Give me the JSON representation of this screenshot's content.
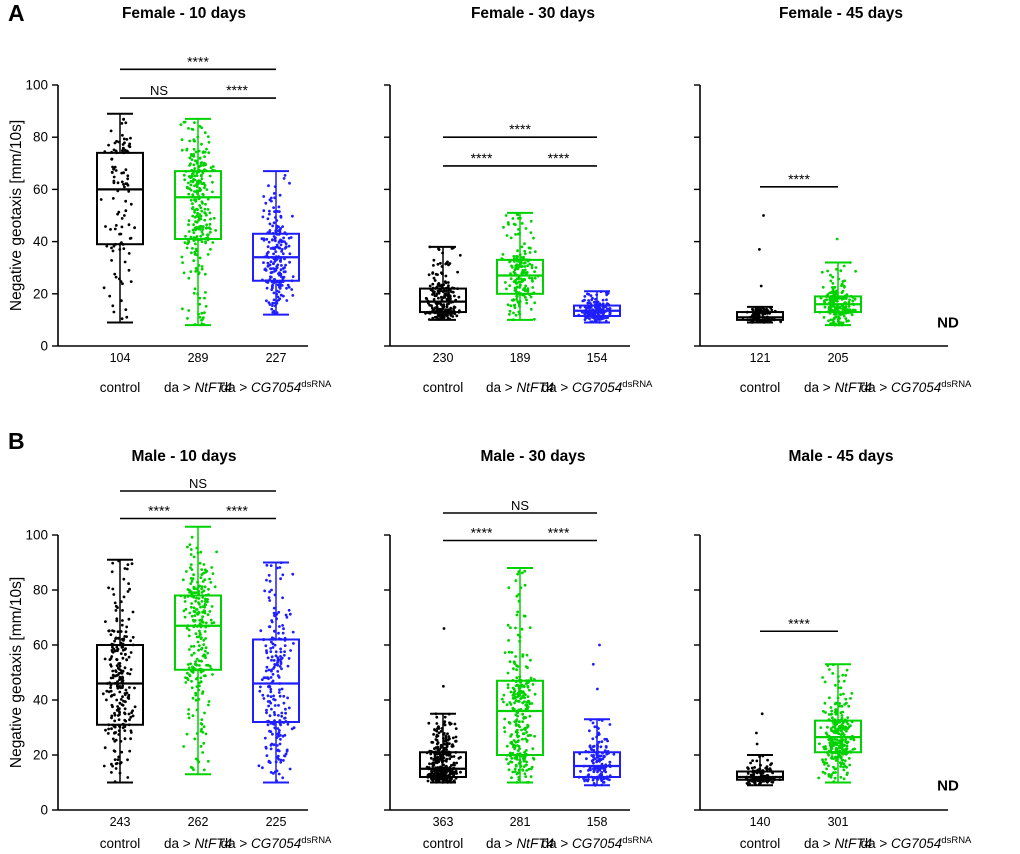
{
  "figure": {
    "letters": [
      "A",
      "B"
    ],
    "y_axis_label": "Negative geotaxis [mm/10s]",
    "nd_label": "ND",
    "colors": {
      "control": "#000000",
      "ntft4": "#00d200",
      "cg7054_dsrna": "#1e1eff"
    }
  },
  "chart_data": [
    {
      "type": "box",
      "title": "Female - 10 days",
      "row": 0,
      "col": 0,
      "ylabel": "Negative geotaxis [mm/10s]",
      "ylim": [
        0,
        100
      ],
      "yticks": [
        0,
        20,
        40,
        60,
        80,
        100
      ],
      "groups": [
        {
          "label_parts": {
            "text": "control"
          },
          "n": 104,
          "color": "#000000",
          "stats": {
            "lo": 9,
            "q1": 39,
            "med": 60,
            "q3": 74,
            "hi": 89
          },
          "outliers": []
        },
        {
          "label_parts": {
            "prefix": "da > ",
            "italic": "NtFT4"
          },
          "n": 289,
          "color": "#00d200",
          "stats": {
            "lo": 8,
            "q1": 41,
            "med": 57,
            "q3": 67,
            "hi": 87
          },
          "outliers": []
        },
        {
          "label_parts": {
            "prefix": "da > ",
            "italic": "CG7054",
            "sup": "dsRNA"
          },
          "n": 227,
          "color": "#1e1eff",
          "stats": {
            "lo": 12,
            "q1": 25,
            "med": 34,
            "q3": 43,
            "hi": 67
          },
          "outliers": []
        }
      ],
      "significance": [
        {
          "from": 0,
          "to": 2,
          "label": "****",
          "y": 106
        },
        {
          "from": 0,
          "to": 1,
          "label": "NS",
          "y": 95
        },
        {
          "from": 1,
          "to": 2,
          "label": "****",
          "y": 95
        }
      ]
    },
    {
      "type": "box",
      "title": "Female - 30 days",
      "row": 0,
      "col": 1,
      "ylabel": "Negative geotaxis [mm/10s]",
      "ylim": [
        0,
        100
      ],
      "yticks": [
        0,
        20,
        40,
        60,
        80,
        100
      ],
      "groups": [
        {
          "label_parts": {
            "text": "control"
          },
          "n": 230,
          "color": "#000000",
          "stats": {
            "lo": 10,
            "q1": 13,
            "med": 17,
            "q3": 22,
            "hi": 38
          },
          "outliers": []
        },
        {
          "label_parts": {
            "prefix": "da > ",
            "italic": "NtFT4"
          },
          "n": 189,
          "color": "#00d200",
          "stats": {
            "lo": 10,
            "q1": 20,
            "med": 27,
            "q3": 33,
            "hi": 51
          },
          "outliers": []
        },
        {
          "label_parts": {
            "prefix": "da > ",
            "italic": "CG7054",
            "sup": "dsRNA"
          },
          "n": 154,
          "color": "#1e1eff",
          "stats": {
            "lo": 9,
            "q1": 11.5,
            "med": 13.5,
            "q3": 15.5,
            "hi": 21
          },
          "outliers": []
        }
      ],
      "significance": [
        {
          "from": 0,
          "to": 2,
          "label": "****",
          "y": 80
        },
        {
          "from": 0,
          "to": 1,
          "label": "****",
          "y": 69
        },
        {
          "from": 1,
          "to": 2,
          "label": "****",
          "y": 69
        }
      ]
    },
    {
      "type": "box",
      "title": "Female - 45 days",
      "row": 0,
      "col": 2,
      "ylabel": "Negative geotaxis [mm/10s]",
      "ylim": [
        0,
        100
      ],
      "yticks": [
        0,
        20,
        40,
        60,
        80,
        100
      ],
      "groups": [
        {
          "label_parts": {
            "text": "control"
          },
          "n": 121,
          "color": "#000000",
          "stats": {
            "lo": 9,
            "q1": 10,
            "med": 11,
            "q3": 13,
            "hi": 15
          },
          "outliers": [
            23,
            37,
            50
          ]
        },
        {
          "label_parts": {
            "prefix": "da > ",
            "italic": "NtFT4"
          },
          "n": 205,
          "color": "#00d200",
          "stats": {
            "lo": 8,
            "q1": 13,
            "med": 16,
            "q3": 19,
            "hi": 32
          },
          "outliers": [
            41
          ]
        },
        {
          "label_parts": {
            "prefix": "da > ",
            "italic": "CG7054",
            "sup": "dsRNA"
          },
          "nd": true
        }
      ],
      "significance": [
        {
          "from": 0,
          "to": 1,
          "label": "****",
          "y": 61
        }
      ]
    },
    {
      "type": "box",
      "title": "Male - 10 days",
      "row": 1,
      "col": 0,
      "ylabel": "Negative geotaxis [mm/10s]",
      "ylim": [
        0,
        100
      ],
      "yticks": [
        0,
        20,
        40,
        60,
        80,
        100
      ],
      "groups": [
        {
          "label_parts": {
            "text": "control"
          },
          "n": 243,
          "color": "#000000",
          "stats": {
            "lo": 10,
            "q1": 31,
            "med": 46,
            "q3": 60,
            "hi": 91
          },
          "outliers": []
        },
        {
          "label_parts": {
            "prefix": "da > ",
            "italic": "NtFT4"
          },
          "n": 262,
          "color": "#00d200",
          "stats": {
            "lo": 13,
            "q1": 51,
            "med": 67,
            "q3": 78,
            "hi": 103
          },
          "outliers": []
        },
        {
          "label_parts": {
            "prefix": "da > ",
            "italic": "CG7054",
            "sup": "dsRNA"
          },
          "n": 225,
          "color": "#1e1eff",
          "stats": {
            "lo": 10,
            "q1": 32,
            "med": 46,
            "q3": 62,
            "hi": 90
          },
          "outliers": []
        }
      ],
      "significance": [
        {
          "from": 0,
          "to": 2,
          "label": "NS",
          "y": 116
        },
        {
          "from": 0,
          "to": 1,
          "label": "****",
          "y": 106
        },
        {
          "from": 1,
          "to": 2,
          "label": "****",
          "y": 106
        }
      ]
    },
    {
      "type": "box",
      "title": "Male - 30 days",
      "row": 1,
      "col": 1,
      "ylabel": "Negative geotaxis [mm/10s]",
      "ylim": [
        0,
        100
      ],
      "yticks": [
        0,
        20,
        40,
        60,
        80,
        100
      ],
      "groups": [
        {
          "label_parts": {
            "text": "control"
          },
          "n": 363,
          "color": "#000000",
          "stats": {
            "lo": 10,
            "q1": 12,
            "med": 15,
            "q3": 21,
            "hi": 35
          },
          "outliers": [
            45,
            66
          ]
        },
        {
          "label_parts": {
            "prefix": "da > ",
            "italic": "NtFT4"
          },
          "n": 281,
          "color": "#00d200",
          "stats": {
            "lo": 10,
            "q1": 20,
            "med": 36,
            "q3": 47,
            "hi": 88
          },
          "outliers": []
        },
        {
          "label_parts": {
            "prefix": "da > ",
            "italic": "CG7054",
            "sup": "dsRNA"
          },
          "n": 158,
          "color": "#1e1eff",
          "stats": {
            "lo": 9,
            "q1": 12,
            "med": 16,
            "q3": 21,
            "hi": 33
          },
          "outliers": [
            44,
            53,
            60
          ]
        }
      ],
      "significance": [
        {
          "from": 0,
          "to": 2,
          "label": "NS",
          "y": 108
        },
        {
          "from": 0,
          "to": 1,
          "label": "****",
          "y": 98
        },
        {
          "from": 1,
          "to": 2,
          "label": "****",
          "y": 98
        }
      ]
    },
    {
      "type": "box",
      "title": "Male - 45 days",
      "row": 1,
      "col": 2,
      "ylabel": "Negative geotaxis [mm/10s]",
      "ylim": [
        0,
        100
      ],
      "yticks": [
        0,
        20,
        40,
        60,
        80,
        100
      ],
      "groups": [
        {
          "label_parts": {
            "text": "control"
          },
          "n": 140,
          "color": "#000000",
          "stats": {
            "lo": 9,
            "q1": 11,
            "med": 12,
            "q3": 14,
            "hi": 20
          },
          "outliers": [
            24,
            28,
            35
          ]
        },
        {
          "label_parts": {
            "prefix": "da > ",
            "italic": "NtFT4"
          },
          "n": 301,
          "color": "#00d200",
          "stats": {
            "lo": 10,
            "q1": 21,
            "med": 26.5,
            "q3": 32.5,
            "hi": 53
          },
          "outliers": []
        },
        {
          "label_parts": {
            "prefix": "da > ",
            "italic": "CG7054",
            "sup": "dsRNA"
          },
          "nd": true
        }
      ],
      "significance": [
        {
          "from": 0,
          "to": 1,
          "label": "****",
          "y": 65
        }
      ]
    }
  ]
}
